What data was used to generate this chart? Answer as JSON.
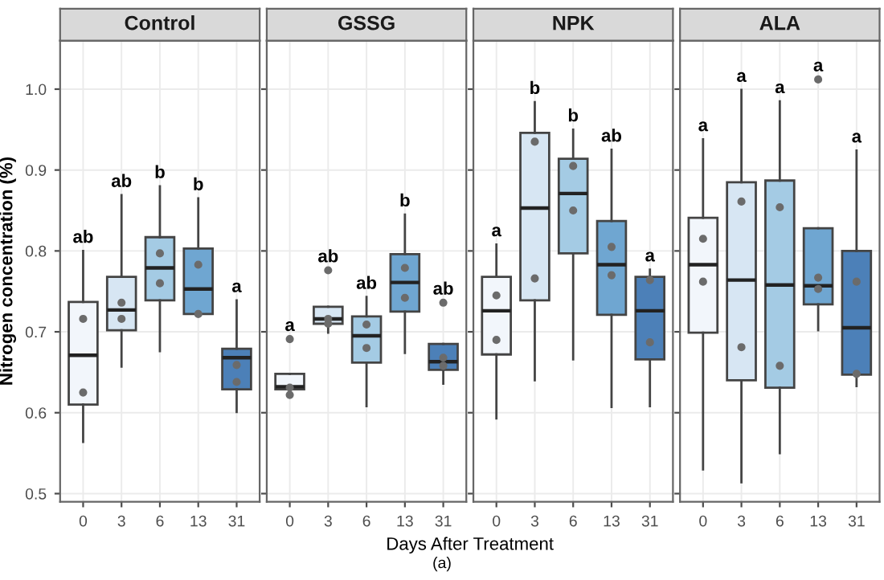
{
  "chart_data": [
    {
      "type": "box",
      "title": "Control",
      "ylabel": "Nitrogen concentration (%)",
      "categories": [
        "0",
        "3",
        "6",
        "13",
        "31"
      ],
      "ylim": [
        0.49,
        1.06
      ],
      "yticks": [
        0.5,
        0.6,
        0.7,
        0.8,
        0.9,
        {
          "value": 1.0,
          "label": "1.0"
        }
      ],
      "grid": true,
      "colors": [
        "#f2f6fb",
        "#d7e6f3",
        "#a4cbe4",
        "#6fa6d1",
        "#4c80b8"
      ],
      "boxes": [
        {
          "low": 0.564,
          "q1": 0.61,
          "median": 0.671,
          "q3": 0.737,
          "high": 0.8
        },
        {
          "low": 0.657,
          "q1": 0.702,
          "median": 0.727,
          "q3": 0.768,
          "high": 0.869
        },
        {
          "low": 0.676,
          "q1": 0.739,
          "median": 0.779,
          "q3": 0.817,
          "high": 0.88
        },
        {
          "low": 0.722,
          "q1": 0.722,
          "median": 0.753,
          "q3": 0.803,
          "high": 0.865
        },
        {
          "low": 0.601,
          "q1": 0.629,
          "median": 0.668,
          "q3": 0.679,
          "high": 0.739
        }
      ],
      "series": [
        {
          "type": "scatter",
          "color": "#6b6b6b",
          "x": [
            "0",
            "0",
            "3",
            "3",
            "6",
            "6",
            "13",
            "13",
            "31",
            "31"
          ],
          "values": [
            0.716,
            0.625,
            0.736,
            0.716,
            0.797,
            0.76,
            0.783,
            0.722,
            0.659,
            0.638
          ]
        }
      ],
      "annotations": [
        {
          "text": "ab",
          "x": "0",
          "y": 0.8
        },
        {
          "text": "ab",
          "x": "3",
          "y": 0.869
        },
        {
          "text": "b",
          "x": "6",
          "y": 0.88
        },
        {
          "text": "b",
          "x": "13",
          "y": 0.865
        },
        {
          "text": "a",
          "x": "31",
          "y": 0.739
        },
        "(a)"
      ]
    },
    {
      "type": "box",
      "title": "GSSG",
      "xlabel": "Days After Treatment",
      "categories": [
        "0",
        "3",
        "6",
        "13",
        "31"
      ],
      "ylim": [
        0.49,
        1.06
      ],
      "tick_labels": "x",
      "grid": true,
      "colors": [
        "#f2f6fb",
        "#d7e6f3",
        "#a4cbe4",
        "#6fa6d1",
        "#4c80b8"
      ],
      "boxes": [
        {
          "low": 0.622,
          "q1": 0.629,
          "median": 0.632,
          "q3": 0.648,
          "high": 0.648
        },
        {
          "low": 0.699,
          "q1": 0.71,
          "median": 0.716,
          "q3": 0.731,
          "high": 0.731
        },
        {
          "low": 0.608,
          "q1": 0.662,
          "median": 0.695,
          "q3": 0.719,
          "high": 0.743
        },
        {
          "low": 0.674,
          "q1": 0.725,
          "median": 0.761,
          "q3": 0.796,
          "high": 0.845
        },
        {
          "low": 0.636,
          "q1": 0.653,
          "median": 0.663,
          "q3": 0.685,
          "high": 0.685
        }
      ],
      "series": [
        {
          "type": "scatter",
          "color": "#6b6b6b",
          "x": [
            "0",
            "0",
            "0",
            "3",
            "3",
            "3",
            "6",
            "6",
            "13",
            "13",
            "31",
            "31",
            "31"
          ],
          "values": [
            0.691,
            0.631,
            0.622,
            0.776,
            0.716,
            0.71,
            0.709,
            0.68,
            0.779,
            0.742,
            0.736,
            0.668,
            0.658
          ]
        }
      ],
      "annotations": [
        {
          "text": "a",
          "x": "0",
          "y": 0.691
        },
        {
          "text": "ab",
          "x": "3",
          "y": 0.776
        },
        {
          "text": "ab",
          "x": "6",
          "y": 0.743
        },
        {
          "text": "b",
          "x": "13",
          "y": 0.845
        },
        {
          "text": "ab",
          "x": "31",
          "y": 0.736
        }
      ]
    },
    {
      "type": "box",
      "title": "NPK",
      "categories": [
        "0",
        "3",
        "6",
        "13",
        "31"
      ],
      "ylim": [
        0.49,
        1.06
      ],
      "tick_labels": "x",
      "grid": true,
      "colors": [
        "#f2f6fb",
        "#d7e6f3",
        "#a4cbe4",
        "#6fa6d1",
        "#4c80b8"
      ],
      "boxes": [
        {
          "low": 0.593,
          "q1": 0.672,
          "median": 0.726,
          "q3": 0.768,
          "high": 0.808
        },
        {
          "low": 0.64,
          "q1": 0.739,
          "median": 0.853,
          "q3": 0.946,
          "high": 0.984
        },
        {
          "low": 0.666,
          "q1": 0.797,
          "median": 0.871,
          "q3": 0.914,
          "high": 0.95
        },
        {
          "low": 0.607,
          "q1": 0.721,
          "median": 0.783,
          "q3": 0.837,
          "high": 0.925
        },
        {
          "low": 0.608,
          "q1": 0.666,
          "median": 0.726,
          "q3": 0.768,
          "high": 0.777
        }
      ],
      "series": [
        {
          "type": "scatter",
          "color": "#6b6b6b",
          "x": [
            "0",
            "0",
            "3",
            "3",
            "6",
            "6",
            "13",
            "13",
            "31",
            "31"
          ],
          "values": [
            0.745,
            0.69,
            0.935,
            0.766,
            0.905,
            0.85,
            0.805,
            0.77,
            0.764,
            0.687
          ]
        }
      ],
      "annotations": [
        {
          "text": "a",
          "x": "0",
          "y": 0.808
        },
        {
          "text": "b",
          "x": "3",
          "y": 0.984
        },
        {
          "text": "b",
          "x": "6",
          "y": 0.95
        },
        {
          "text": "ab",
          "x": "13",
          "y": 0.925
        },
        {
          "text": "a",
          "x": "31",
          "y": 0.777
        }
      ]
    },
    {
      "type": "box",
      "title": "ALA",
      "categories": [
        "0",
        "3",
        "6",
        "13",
        "31"
      ],
      "ylim": [
        0.49,
        1.06
      ],
      "tick_labels": "x",
      "grid": true,
      "colors": [
        "#f2f6fb",
        "#d7e6f3",
        "#a4cbe4",
        "#6fa6d1",
        "#4c80b8"
      ],
      "boxes": [
        {
          "low": 0.53,
          "q1": 0.699,
          "median": 0.783,
          "q3": 0.841,
          "high": 0.938
        },
        {
          "low": 0.514,
          "q1": 0.64,
          "median": 0.764,
          "q3": 0.885,
          "high": 0.999
        },
        {
          "low": 0.55,
          "q1": 0.631,
          "median": 0.758,
          "q3": 0.887,
          "high": 0.985
        },
        {
          "low": 0.702,
          "q1": 0.734,
          "median": 0.757,
          "q3": 0.828,
          "high": 0.828
        },
        {
          "low": 0.633,
          "q1": 0.647,
          "median": 0.705,
          "q3": 0.8,
          "high": 0.924
        }
      ],
      "series": [
        {
          "type": "scatter",
          "color": "#6b6b6b",
          "x": [
            "0",
            "0",
            "3",
            "3",
            "6",
            "6",
            "13",
            "13",
            "13",
            "31",
            "31"
          ],
          "values": [
            0.815,
            0.762,
            0.861,
            0.681,
            0.854,
            0.658,
            1.012,
            0.767,
            0.753,
            0.762,
            0.648
          ]
        }
      ],
      "annotations": [
        {
          "text": "a",
          "x": "0",
          "y": 0.938
        },
        {
          "text": "a",
          "x": "3",
          "y": 0.999
        },
        {
          "text": "a",
          "x": "6",
          "y": 0.985
        },
        {
          "text": "a",
          "x": "13",
          "y": 1.012
        },
        {
          "text": "a",
          "x": "31",
          "y": 0.924
        }
      ]
    }
  ]
}
